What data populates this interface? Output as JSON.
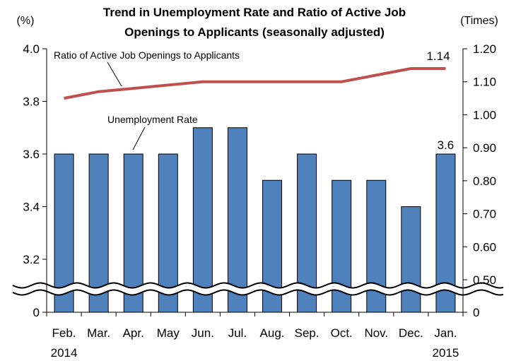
{
  "chart_data": {
    "type": "bar",
    "title_line1": "Trend in Unemployment Rate and Ratio of Active Job",
    "title_line2": "Openings to Applicants (seasonally adjusted)",
    "categories": [
      "Feb.",
      "Mar.",
      "Apr.",
      "May",
      "Jun.",
      "Jul.",
      "Aug.",
      "Sep.",
      "Oct.",
      "Nov.",
      "Dec.",
      "Jan."
    ],
    "year_labels": {
      "first": "2014",
      "last": "2015"
    },
    "left_axis": {
      "unit": "(%)",
      "ticks": [
        "4.0",
        "3.8",
        "3.6",
        "3.4",
        "3.2",
        "0"
      ],
      "ylim": [
        3.1,
        4.0
      ],
      "axis_break": true
    },
    "right_axis": {
      "unit": "(Times)",
      "ticks": [
        "1.20",
        "1.10",
        "1.00",
        "0.90",
        "0.80",
        "0.70",
        "0.60",
        "0.50",
        "0"
      ],
      "ylim": [
        0.48,
        1.2
      ],
      "axis_break": true
    },
    "series": [
      {
        "name": "Unemployment Rate",
        "type": "bar",
        "axis": "left",
        "color": "#4f81bd",
        "values": [
          3.6,
          3.6,
          3.6,
          3.6,
          3.7,
          3.7,
          3.5,
          3.6,
          3.5,
          3.5,
          3.4,
          3.6
        ]
      },
      {
        "name": "Ratio of Active Job Openings to Applicants",
        "type": "line",
        "axis": "right",
        "color": "#c0504d",
        "values": [
          1.05,
          1.07,
          1.08,
          1.09,
          1.1,
          1.1,
          1.1,
          1.1,
          1.1,
          1.12,
          1.14,
          1.14
        ]
      }
    ],
    "data_labels": {
      "bar_last": "3.6",
      "line_last": "1.14"
    }
  }
}
